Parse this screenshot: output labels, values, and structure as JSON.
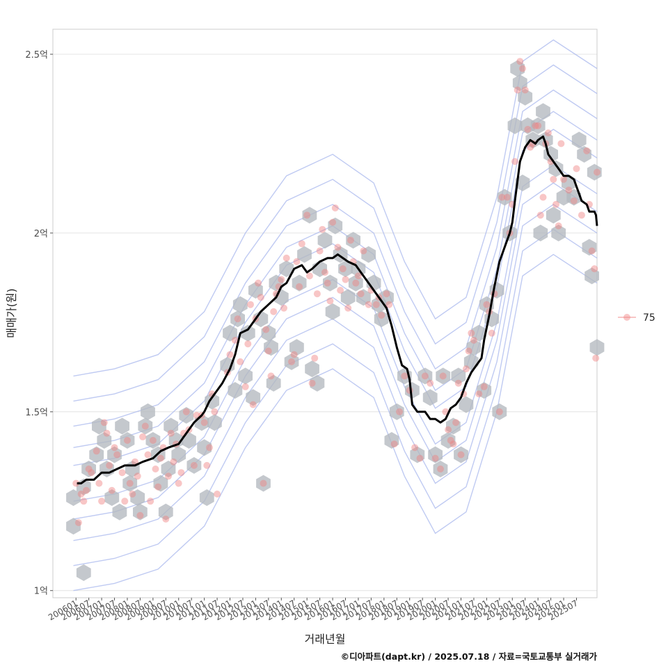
{
  "chart_data": {
    "type": "scatter",
    "xlabel": "거래년월",
    "ylabel": "매매가(원)",
    "caption": "©디아파트(dapt.kr) / 2025.07.18 / 자료=국토교통부 실거래가",
    "y_ticks": [
      {
        "value": 1.0,
        "label": "1억"
      },
      {
        "value": 1.5,
        "label": "1.5억"
      },
      {
        "value": 2.0,
        "label": "2억"
      },
      {
        "value": 2.5,
        "label": "2.5억"
      }
    ],
    "ylim": [
      0.98,
      2.57
    ],
    "xlim": [
      2005.1,
      2026.3
    ],
    "x_ticks": [
      "200601",
      "200607",
      "200701",
      "200707",
      "200801",
      "200807",
      "200901",
      "200907",
      "201001",
      "201007",
      "201101",
      "201107",
      "201201",
      "201207",
      "201301",
      "201307",
      "201401",
      "201407",
      "201501",
      "201507",
      "201601",
      "201607",
      "201701",
      "201707",
      "201801",
      "201807",
      "201901",
      "201907",
      "202001",
      "202007",
      "202101",
      "202107",
      "202201",
      "202207",
      "202301",
      "202307",
      "202401",
      "202407",
      "202501",
      "202507"
    ],
    "grid": true,
    "legend": {
      "placement": "right",
      "label": "75",
      "color": "#f08080"
    },
    "colors": {
      "points": "#f08080",
      "trend": "#000000",
      "hex": "#b3b9bf",
      "contour": "#a9b8ee"
    },
    "trend_series": [
      [
        2006.04,
        1.3
      ],
      [
        2006.2,
        1.3
      ],
      [
        2006.4,
        1.31
      ],
      [
        2006.7,
        1.31
      ],
      [
        2007.0,
        1.33
      ],
      [
        2007.3,
        1.33
      ],
      [
        2007.6,
        1.34
      ],
      [
        2007.9,
        1.35
      ],
      [
        2008.0,
        1.35
      ],
      [
        2008.3,
        1.35
      ],
      [
        2008.6,
        1.36
      ],
      [
        2009.0,
        1.37
      ],
      [
        2009.3,
        1.39
      ],
      [
        2009.6,
        1.4
      ],
      [
        2010.0,
        1.41
      ],
      [
        2010.3,
        1.44
      ],
      [
        2010.6,
        1.47
      ],
      [
        2010.9,
        1.49
      ],
      [
        2011.0,
        1.5
      ],
      [
        2011.2,
        1.53
      ],
      [
        2011.5,
        1.56
      ],
      [
        2011.7,
        1.58
      ],
      [
        2012.0,
        1.62
      ],
      [
        2012.2,
        1.66
      ],
      [
        2012.4,
        1.72
      ],
      [
        2012.7,
        1.73
      ],
      [
        2013.0,
        1.76
      ],
      [
        2013.2,
        1.78
      ],
      [
        2013.5,
        1.8
      ],
      [
        2013.8,
        1.82
      ],
      [
        2014.0,
        1.85
      ],
      [
        2014.2,
        1.86
      ],
      [
        2014.5,
        1.9
      ],
      [
        2014.8,
        1.91
      ],
      [
        2015.0,
        1.89
      ],
      [
        2015.2,
        1.9
      ],
      [
        2015.5,
        1.92
      ],
      [
        2015.8,
        1.93
      ],
      [
        2016.0,
        1.93
      ],
      [
        2016.2,
        1.94
      ],
      [
        2016.4,
        1.93
      ],
      [
        2016.6,
        1.92
      ],
      [
        2016.9,
        1.91
      ],
      [
        2017.1,
        1.89
      ],
      [
        2017.4,
        1.86
      ],
      [
        2017.6,
        1.84
      ],
      [
        2017.9,
        1.81
      ],
      [
        2018.1,
        1.79
      ],
      [
        2018.3,
        1.74
      ],
      [
        2018.5,
        1.68
      ],
      [
        2018.7,
        1.63
      ],
      [
        2018.9,
        1.62
      ],
      [
        2019.0,
        1.59
      ],
      [
        2019.1,
        1.52
      ],
      [
        2019.3,
        1.5
      ],
      [
        2019.6,
        1.5
      ],
      [
        2019.8,
        1.48
      ],
      [
        2020.0,
        1.48
      ],
      [
        2020.2,
        1.47
      ],
      [
        2020.4,
        1.48
      ],
      [
        2020.6,
        1.51
      ],
      [
        2020.8,
        1.52
      ],
      [
        2021.0,
        1.54
      ],
      [
        2021.2,
        1.58
      ],
      [
        2021.4,
        1.61
      ],
      [
        2021.6,
        1.63
      ],
      [
        2021.8,
        1.65
      ],
      [
        2021.9,
        1.7
      ],
      [
        2022.1,
        1.77
      ],
      [
        2022.3,
        1.85
      ],
      [
        2022.5,
        1.92
      ],
      [
        2022.7,
        1.96
      ],
      [
        2022.9,
        2.0
      ],
      [
        2023.0,
        2.03
      ],
      [
        2023.1,
        2.09
      ],
      [
        2023.3,
        2.2
      ],
      [
        2023.5,
        2.24
      ],
      [
        2023.7,
        2.26
      ],
      [
        2023.9,
        2.25
      ],
      [
        2024.0,
        2.26
      ],
      [
        2024.2,
        2.27
      ],
      [
        2024.3,
        2.25
      ],
      [
        2024.4,
        2.22
      ],
      [
        2024.6,
        2.2
      ],
      [
        2024.8,
        2.18
      ],
      [
        2025.0,
        2.16
      ],
      [
        2025.2,
        2.16
      ],
      [
        2025.4,
        2.15
      ],
      [
        2025.5,
        2.13
      ],
      [
        2025.7,
        2.09
      ],
      [
        2025.9,
        2.08
      ],
      [
        2026.0,
        2.06
      ],
      [
        2026.2,
        2.06
      ],
      [
        2026.26,
        2.05
      ],
      [
        2026.3,
        2.02
      ]
    ],
    "hexbin_centers": [
      [
        2005.9,
        1.26
      ],
      [
        2005.9,
        1.18
      ],
      [
        2006.3,
        1.05
      ],
      [
        2006.3,
        1.29
      ],
      [
        2006.5,
        1.34
      ],
      [
        2006.8,
        1.38
      ],
      [
        2006.9,
        1.46
      ],
      [
        2007.1,
        1.42
      ],
      [
        2007.2,
        1.34
      ],
      [
        2007.5,
        1.38
      ],
      [
        2007.4,
        1.26
      ],
      [
        2007.7,
        1.22
      ],
      [
        2007.8,
        1.46
      ],
      [
        2008.0,
        1.42
      ],
      [
        2008.2,
        1.34
      ],
      [
        2008.1,
        1.3
      ],
      [
        2008.4,
        1.26
      ],
      [
        2008.5,
        1.22
      ],
      [
        2008.7,
        1.46
      ],
      [
        2008.8,
        1.5
      ],
      [
        2009.0,
        1.42
      ],
      [
        2009.2,
        1.38
      ],
      [
        2009.3,
        1.3
      ],
      [
        2009.5,
        1.22
      ],
      [
        2009.6,
        1.34
      ],
      [
        2009.7,
        1.46
      ],
      [
        2009.9,
        1.42
      ],
      [
        2010.0,
        1.38
      ],
      [
        2010.3,
        1.49
      ],
      [
        2010.4,
        1.42
      ],
      [
        2010.6,
        1.35
      ],
      [
        2010.9,
        1.47
      ],
      [
        2011.0,
        1.4
      ],
      [
        2011.1,
        1.26
      ],
      [
        2011.3,
        1.53
      ],
      [
        2011.4,
        1.47
      ],
      [
        2011.9,
        1.63
      ],
      [
        2012.2,
        1.56
      ],
      [
        2012.0,
        1.72
      ],
      [
        2012.3,
        1.76
      ],
      [
        2012.4,
        1.8
      ],
      [
        2012.7,
        1.72
      ],
      [
        2012.6,
        1.6
      ],
      [
        2012.9,
        1.54
      ],
      [
        2013.0,
        1.84
      ],
      [
        2013.2,
        1.76
      ],
      [
        2013.3,
        1.3
      ],
      [
        2013.5,
        1.72
      ],
      [
        2013.6,
        1.68
      ],
      [
        2013.7,
        1.58
      ],
      [
        2013.8,
        1.86
      ],
      [
        2014.0,
        1.82
      ],
      [
        2014.2,
        1.9
      ],
      [
        2014.4,
        1.64
      ],
      [
        2014.6,
        1.68
      ],
      [
        2014.7,
        1.86
      ],
      [
        2014.9,
        1.94
      ],
      [
        2015.1,
        2.05
      ],
      [
        2015.2,
        1.62
      ],
      [
        2015.4,
        1.58
      ],
      [
        2015.5,
        1.9
      ],
      [
        2015.7,
        1.98
      ],
      [
        2015.9,
        1.86
      ],
      [
        2016.0,
        1.78
      ],
      [
        2016.1,
        2.02
      ],
      [
        2016.3,
        1.94
      ],
      [
        2016.5,
        1.9
      ],
      [
        2016.6,
        1.82
      ],
      [
        2016.8,
        1.98
      ],
      [
        2016.9,
        1.86
      ],
      [
        2017.0,
        1.9
      ],
      [
        2017.2,
        1.82
      ],
      [
        2017.4,
        1.94
      ],
      [
        2017.6,
        1.86
      ],
      [
        2017.8,
        1.8
      ],
      [
        2017.9,
        1.76
      ],
      [
        2018.1,
        1.82
      ],
      [
        2018.3,
        1.42
      ],
      [
        2018.5,
        1.5
      ],
      [
        2018.8,
        1.6
      ],
      [
        2019.1,
        1.56
      ],
      [
        2019.3,
        1.38
      ],
      [
        2019.6,
        1.6
      ],
      [
        2019.8,
        1.54
      ],
      [
        2020.0,
        1.38
      ],
      [
        2020.2,
        1.34
      ],
      [
        2020.3,
        1.6
      ],
      [
        2020.5,
        1.42
      ],
      [
        2020.7,
        1.46
      ],
      [
        2020.9,
        1.6
      ],
      [
        2021.0,
        1.38
      ],
      [
        2021.2,
        1.52
      ],
      [
        2021.4,
        1.64
      ],
      [
        2021.5,
        1.68
      ],
      [
        2021.7,
        1.72
      ],
      [
        2021.9,
        1.56
      ],
      [
        2022.0,
        1.8
      ],
      [
        2022.2,
        1.76
      ],
      [
        2022.4,
        1.84
      ],
      [
        2022.5,
        1.5
      ],
      [
        2022.7,
        2.1
      ],
      [
        2022.9,
        2.0
      ],
      [
        2023.1,
        2.3
      ],
      [
        2023.2,
        2.46
      ],
      [
        2023.3,
        2.42
      ],
      [
        2023.5,
        2.38
      ],
      [
        2023.6,
        2.3
      ],
      [
        2023.8,
        2.26
      ],
      [
        2024.0,
        2.3
      ],
      [
        2024.2,
        2.34
      ],
      [
        2024.3,
        2.26
      ],
      [
        2024.5,
        2.22
      ],
      [
        2024.7,
        2.18
      ],
      [
        2024.6,
        2.05
      ],
      [
        2024.8,
        2.0
      ],
      [
        2025.0,
        2.1
      ],
      [
        2025.2,
        2.14
      ],
      [
        2025.4,
        2.1
      ],
      [
        2025.6,
        2.26
      ],
      [
        2025.8,
        2.22
      ],
      [
        2026.0,
        1.96
      ],
      [
        2026.1,
        1.88
      ],
      [
        2026.2,
        2.17
      ],
      [
        2026.3,
        1.68
      ],
      [
        2024.1,
        2.0
      ],
      [
        2023.4,
        2.14
      ]
    ],
    "points": [
      [
        2006.0,
        1.3
      ],
      [
        2006.1,
        1.19
      ],
      [
        2006.2,
        1.27
      ],
      [
        2006.3,
        1.25
      ],
      [
        2006.4,
        1.28
      ],
      [
        2006.5,
        1.34
      ],
      [
        2006.6,
        1.33
      ],
      [
        2006.8,
        1.39
      ],
      [
        2006.9,
        1.3
      ],
      [
        2007.0,
        1.25
      ],
      [
        2007.1,
        1.47
      ],
      [
        2007.2,
        1.44
      ],
      [
        2007.3,
        1.35
      ],
      [
        2007.4,
        1.28
      ],
      [
        2007.5,
        1.4
      ],
      [
        2007.6,
        1.38
      ],
      [
        2007.8,
        1.33
      ],
      [
        2007.9,
        1.25
      ],
      [
        2008.0,
        1.42
      ],
      [
        2008.1,
        1.3
      ],
      [
        2008.2,
        1.27
      ],
      [
        2008.3,
        1.36
      ],
      [
        2008.4,
        1.32
      ],
      [
        2008.5,
        1.21
      ],
      [
        2008.6,
        1.43
      ],
      [
        2008.7,
        1.46
      ],
      [
        2008.8,
        1.38
      ],
      [
        2008.9,
        1.25
      ],
      [
        2009.0,
        1.42
      ],
      [
        2009.1,
        1.34
      ],
      [
        2009.2,
        1.29
      ],
      [
        2009.3,
        1.37
      ],
      [
        2009.4,
        1.4
      ],
      [
        2009.5,
        1.2
      ],
      [
        2009.6,
        1.32
      ],
      [
        2009.7,
        1.44
      ],
      [
        2009.8,
        1.36
      ],
      [
        2009.9,
        1.41
      ],
      [
        2010.0,
        1.3
      ],
      [
        2010.1,
        1.33
      ],
      [
        2010.2,
        1.44
      ],
      [
        2010.3,
        1.5
      ],
      [
        2010.4,
        1.45
      ],
      [
        2010.6,
        1.35
      ],
      [
        2010.7,
        1.49
      ],
      [
        2010.9,
        1.49
      ],
      [
        2011.0,
        1.47
      ],
      [
        2011.1,
        1.35
      ],
      [
        2011.2,
        1.4
      ],
      [
        2011.3,
        1.55
      ],
      [
        2011.4,
        1.5
      ],
      [
        2011.5,
        1.27
      ],
      [
        2011.9,
        1.61
      ],
      [
        2012.0,
        1.66
      ],
      [
        2012.2,
        1.7
      ],
      [
        2012.3,
        1.76
      ],
      [
        2012.4,
        1.64
      ],
      [
        2012.6,
        1.57
      ],
      [
        2012.7,
        1.69
      ],
      [
        2012.8,
        1.8
      ],
      [
        2012.9,
        1.52
      ],
      [
        2013.0,
        1.76
      ],
      [
        2013.1,
        1.86
      ],
      [
        2013.2,
        1.82
      ],
      [
        2013.3,
        1.3
      ],
      [
        2013.4,
        1.73
      ],
      [
        2013.5,
        1.67
      ],
      [
        2013.6,
        1.6
      ],
      [
        2013.7,
        1.78
      ],
      [
        2013.8,
        1.83
      ],
      [
        2013.9,
        1.85
      ],
      [
        2014.0,
        1.87
      ],
      [
        2014.1,
        1.79
      ],
      [
        2014.2,
        1.93
      ],
      [
        2014.4,
        1.64
      ],
      [
        2014.5,
        1.66
      ],
      [
        2014.6,
        1.92
      ],
      [
        2014.7,
        1.85
      ],
      [
        2014.8,
        1.97
      ],
      [
        2015.0,
        2.05
      ],
      [
        2015.1,
        1.88
      ],
      [
        2015.2,
        1.58
      ],
      [
        2015.3,
        1.65
      ],
      [
        2015.4,
        1.83
      ],
      [
        2015.5,
        1.95
      ],
      [
        2015.6,
        2.01
      ],
      [
        2015.7,
        1.89
      ],
      [
        2015.8,
        1.86
      ],
      [
        2015.9,
        1.81
      ],
      [
        2016.0,
        2.03
      ],
      [
        2016.1,
        2.07
      ],
      [
        2016.2,
        1.96
      ],
      [
        2016.3,
        1.84
      ],
      [
        2016.4,
        1.9
      ],
      [
        2016.5,
        1.87
      ],
      [
        2016.6,
        1.79
      ],
      [
        2016.7,
        1.98
      ],
      [
        2016.8,
        1.92
      ],
      [
        2016.9,
        1.86
      ],
      [
        2017.0,
        1.88
      ],
      [
        2017.1,
        1.83
      ],
      [
        2017.2,
        1.95
      ],
      [
        2017.4,
        1.8
      ],
      [
        2017.5,
        1.84
      ],
      [
        2017.7,
        1.8
      ],
      [
        2017.8,
        1.82
      ],
      [
        2017.9,
        1.77
      ],
      [
        2018.1,
        1.83
      ],
      [
        2018.2,
        1.8
      ],
      [
        2018.4,
        1.41
      ],
      [
        2018.6,
        1.5
      ],
      [
        2018.8,
        1.6
      ],
      [
        2019.0,
        1.56
      ],
      [
        2019.2,
        1.4
      ],
      [
        2019.4,
        1.37
      ],
      [
        2019.6,
        1.6
      ],
      [
        2019.8,
        1.58
      ],
      [
        2020.0,
        1.37
      ],
      [
        2020.2,
        1.34
      ],
      [
        2020.3,
        1.6
      ],
      [
        2020.4,
        1.5
      ],
      [
        2020.5,
        1.45
      ],
      [
        2020.6,
        1.42
      ],
      [
        2020.7,
        1.41
      ],
      [
        2020.8,
        1.47
      ],
      [
        2020.9,
        1.58
      ],
      [
        2021.0,
        1.38
      ],
      [
        2021.1,
        1.55
      ],
      [
        2021.2,
        1.62
      ],
      [
        2021.3,
        1.67
      ],
      [
        2021.4,
        1.72
      ],
      [
        2021.5,
        1.7
      ],
      [
        2021.7,
        1.55
      ],
      [
        2021.9,
        1.57
      ],
      [
        2022.0,
        1.8
      ],
      [
        2022.1,
        1.78
      ],
      [
        2022.2,
        1.72
      ],
      [
        2022.3,
        1.83
      ],
      [
        2022.5,
        1.5
      ],
      [
        2022.6,
        2.1
      ],
      [
        2022.8,
        2.1
      ],
      [
        2022.9,
        2.0
      ],
      [
        2023.0,
        2.08
      ],
      [
        2023.1,
        2.2
      ],
      [
        2023.2,
        2.4
      ],
      [
        2023.3,
        2.48
      ],
      [
        2023.4,
        2.46
      ],
      [
        2023.5,
        2.4
      ],
      [
        2023.6,
        2.29
      ],
      [
        2023.7,
        2.24
      ],
      [
        2023.8,
        2.25
      ],
      [
        2023.9,
        2.3
      ],
      [
        2024.0,
        2.3
      ],
      [
        2024.1,
        2.05
      ],
      [
        2024.2,
        2.1
      ],
      [
        2024.3,
        2.25
      ],
      [
        2024.4,
        2.28
      ],
      [
        2024.5,
        2.2
      ],
      [
        2024.6,
        2.15
      ],
      [
        2024.7,
        2.08
      ],
      [
        2024.8,
        2.02
      ],
      [
        2024.9,
        2.25
      ],
      [
        2025.0,
        2.15
      ],
      [
        2025.2,
        2.12
      ],
      [
        2025.4,
        2.09
      ],
      [
        2025.5,
        2.18
      ],
      [
        2025.7,
        2.05
      ],
      [
        2025.9,
        2.23
      ],
      [
        2026.0,
        2.08
      ],
      [
        2026.1,
        1.95
      ],
      [
        2026.2,
        1.9
      ],
      [
        2026.3,
        2.17
      ],
      [
        2026.25,
        1.65
      ]
    ]
  }
}
